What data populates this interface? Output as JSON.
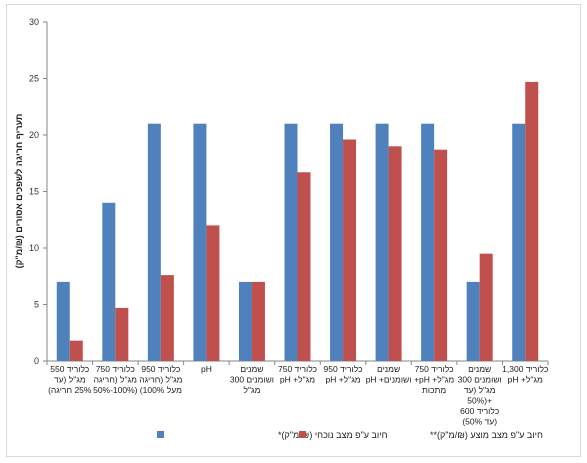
{
  "chart_data": {
    "type": "bar",
    "ylabel": "תעריף חריגה לשפכים אסורים (₪/מ\"ק)",
    "ylim": [
      0,
      30
    ],
    "yticks": [
      0,
      5,
      10,
      15,
      20,
      25,
      30
    ],
    "grid": false,
    "legend_position": "bottom",
    "categories": [
      [
        "כלוריד 550",
        "מג\"ל (עד",
        "25% חריגה)"
      ],
      [
        "כלוריד 750",
        "מג\"ל (חריגה",
        "50%-100%)"
      ],
      [
        "כלוריד 950",
        "מג\"ל (חריגה",
        "מעל 100%)"
      ],
      [
        "pH"
      ],
      [
        "שמנים",
        "ושומנים 300",
        "מג\"ל"
      ],
      [
        "כלוריד 750",
        "מג\"ל+ pH"
      ],
      [
        "כלוריד 950",
        "מג\"ל+ pH"
      ],
      [
        "שמנים",
        "ושומנים+ pH"
      ],
      [
        "כלוריד 750",
        "מג\"ל+ pH+",
        "מתכות"
      ],
      [
        "שמנים",
        "ושומנים 300",
        "מג\"ל (עד",
        "50%)+",
        "כלוריד 600",
        "(עד 50%)"
      ],
      [
        "כלוריד 1,300",
        "מג\"ל+ pH"
      ]
    ],
    "series": [
      {
        "name": "חיוב ע\"פ מצב נוכחי (₪/מ\"ק)*",
        "color": "#4f81bd",
        "values": [
          7,
          14,
          21,
          21,
          7,
          21,
          21,
          21,
          21,
          7,
          21
        ]
      },
      {
        "name": "חיוב ע\"פ מצב מוצע (₪/מ\"ק)**",
        "color": "#c0504d",
        "values": [
          1.8,
          4.7,
          7.6,
          12,
          7,
          16.7,
          19.6,
          19,
          18.7,
          9.5,
          24.7
        ]
      }
    ]
  }
}
